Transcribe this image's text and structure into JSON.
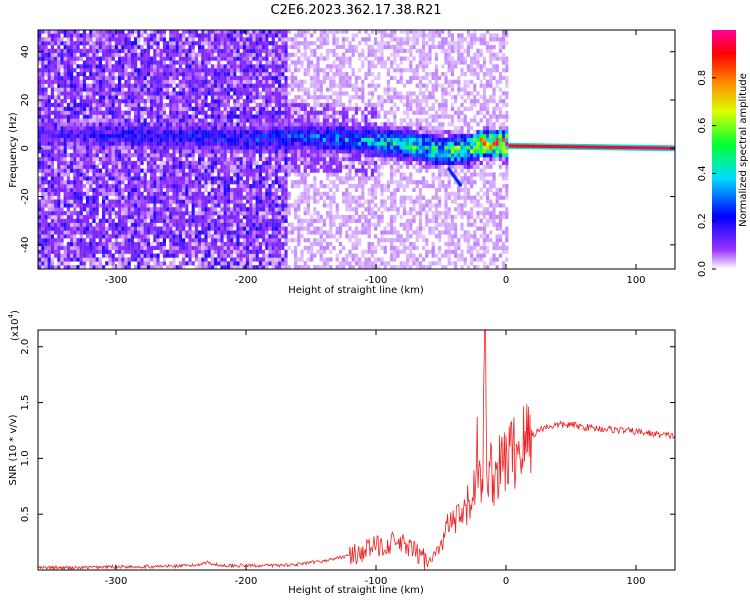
{
  "title": "C2E6.2023.362.17.38.R21",
  "chart_data": [
    {
      "type": "heatmap",
      "xlabel": "Height of straight line (km)",
      "ylabel": "Frequency (Hz)",
      "xlim": [
        -360,
        130
      ],
      "ylim": [
        -50,
        49
      ],
      "xticks": [
        -300,
        -200,
        -100,
        0,
        100
      ],
      "xtick_labels": [
        "-300",
        "-200",
        "-100",
        "0",
        "100"
      ],
      "yticks": [
        -40,
        -20,
        0,
        20,
        40
      ],
      "ytick_labels": [
        "-40",
        "-20",
        "0",
        "20",
        "40"
      ],
      "colorbar": {
        "label": "Normalized spectral amplitude",
        "range": [
          0,
          1
        ],
        "ticks": [
          0.0,
          0.2,
          0.4,
          0.6,
          0.8
        ],
        "tick_labels": [
          "0.0",
          "0.2",
          "0.4",
          "0.6",
          "0.8"
        ],
        "colors": [
          "#ffffff",
          "#8800ff",
          "#0000ff",
          "#00ffff",
          "#00ff00",
          "#ffff00",
          "#ff8800",
          "#ff0000",
          "#ff0099"
        ]
      },
      "ridge": {
        "description_points_x": [
          -360,
          -300,
          -200,
          -150,
          -100,
          -70,
          -50,
          -30,
          -20,
          0,
          130
        ],
        "center_freq": [
          5,
          5,
          3,
          4,
          2,
          0,
          -2,
          -1,
          1,
          1,
          0
        ],
        "peak_amplitude": [
          0.15,
          0.2,
          0.25,
          0.3,
          0.4,
          0.5,
          0.55,
          0.6,
          0.85,
          0.9,
          0.95
        ]
      },
      "grid": false
    },
    {
      "type": "line",
      "xlabel": "Height of straight line (km)",
      "ylabel": "SNR (10 * v/v)",
      "y_scale_note": "(x10",
      "y_scale_exp": "4",
      "y_scale_close": ")",
      "xlim": [
        -360,
        130
      ],
      "ylim": [
        0,
        2.15
      ],
      "xticks": [
        -300,
        -200,
        -100,
        0,
        100
      ],
      "xtick_labels": [
        "-300",
        "-200",
        "-100",
        "0",
        "100"
      ],
      "yticks": [
        0.5,
        1.0,
        1.5,
        2.0
      ],
      "ytick_labels": [
        "0.5",
        "1.0",
        "1.5",
        "2.0"
      ],
      "line_color": "#ee2222",
      "series": [
        {
          "x": [
            -360,
            -330,
            -300,
            -270,
            -240,
            -230,
            -220,
            -200,
            -180,
            -160,
            -140,
            -125,
            -115,
            -105,
            -95,
            -85,
            -75,
            -60,
            -50,
            -45,
            -35,
            -30,
            -25,
            -22,
            -20,
            -18,
            -16,
            -14,
            -12,
            -10,
            -5,
            0,
            5,
            10,
            15,
            20,
            25,
            30,
            40,
            50,
            60,
            80,
            100,
            120,
            130
          ],
          "values": [
            0.02,
            0.02,
            0.03,
            0.03,
            0.04,
            0.07,
            0.04,
            0.04,
            0.04,
            0.05,
            0.08,
            0.12,
            0.14,
            0.2,
            0.22,
            0.25,
            0.2,
            0.08,
            0.2,
            0.4,
            0.45,
            0.55,
            0.7,
            1.1,
            0.7,
            0.8,
            2.15,
            0.7,
            0.9,
            0.85,
            0.9,
            1.0,
            1.05,
            1.1,
            1.15,
            1.2,
            1.25,
            1.28,
            1.3,
            1.3,
            1.28,
            1.26,
            1.24,
            1.21,
            1.2
          ]
        }
      ],
      "grid": false
    }
  ]
}
